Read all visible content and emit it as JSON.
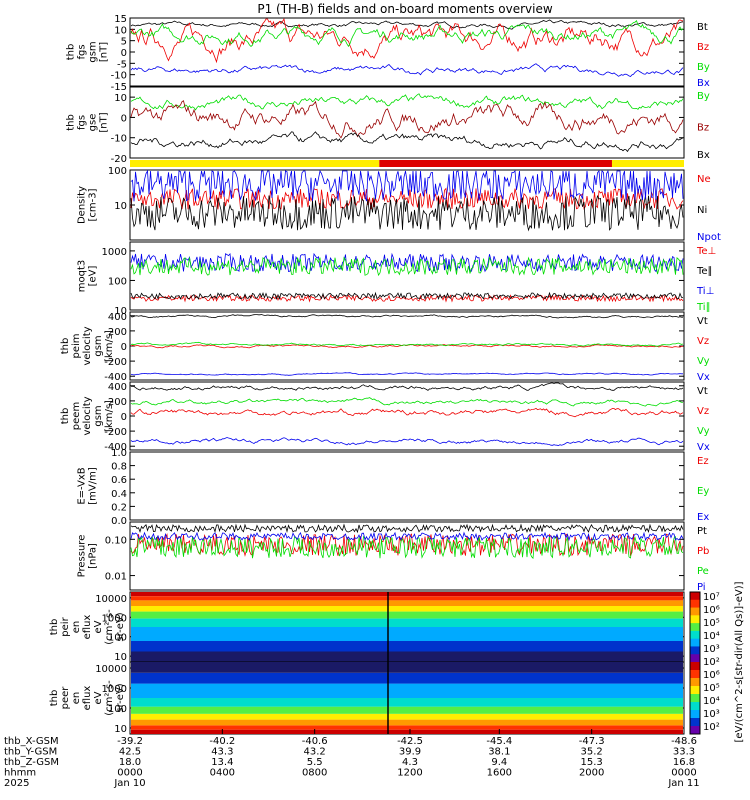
{
  "title": "P1 (TH-B) fields and on-board moments overview",
  "colors": {
    "black": "#000000",
    "red": "#ee0000",
    "green": "#00dd00",
    "blue": "#0000ee",
    "dark_red": "#990000",
    "yellow": "#ffee00",
    "bar_red": "#dd0000"
  },
  "chart_data": [
    {
      "type": "line",
      "ylabel": [
        "thb",
        "fgs",
        "gsm",
        "[nT]"
      ],
      "ylim": [
        -15,
        15
      ],
      "yticks": [
        "15",
        "10",
        "5",
        "0",
        "-5",
        "-10",
        "-15"
      ],
      "series": [
        {
          "name": "Bt",
          "color": "black",
          "level": 12,
          "spread": 2
        },
        {
          "name": "Bz",
          "color": "red",
          "level": 6,
          "spread": 10
        },
        {
          "name": "By",
          "color": "green",
          "level": 8,
          "spread": 6
        },
        {
          "name": "Bx",
          "color": "blue",
          "level": -8,
          "spread": 3
        }
      ]
    },
    {
      "type": "line",
      "ylabel": [
        "thb",
        "fgs",
        "gse",
        "[nT]"
      ],
      "ylim": [
        -20,
        15
      ],
      "yticks": [
        "10",
        "0",
        "-10",
        "-20"
      ],
      "series": [
        {
          "name": "By",
          "color": "green",
          "level": 7,
          "spread": 5
        },
        {
          "name": "Bz",
          "color": "dark_red",
          "level": 0,
          "spread": 10
        },
        {
          "name": "Bx",
          "color": "black",
          "level": -12,
          "spread": 5
        }
      ]
    },
    {
      "type": "bar",
      "name": "mode bar",
      "segments": [
        {
          "color": "yellow",
          "from": 0,
          "to": 0.45
        },
        {
          "color": "bar_red",
          "from": 0.45,
          "to": 0.87
        },
        {
          "color": "yellow",
          "from": 0.87,
          "to": 1
        }
      ]
    },
    {
      "type": "line",
      "scale": "log",
      "ylabel": [
        "Density",
        "[cm-3]"
      ],
      "ylim": [
        1,
        100
      ],
      "yticks": [
        "100",
        "10"
      ],
      "series": [
        {
          "name": "Ne",
          "color": "red",
          "level": 15,
          "spread": 0.3
        },
        {
          "name": "Ni",
          "color": "black",
          "level": 6,
          "spread": 0.5
        },
        {
          "name": "Npot",
          "color": "blue",
          "level": 40,
          "spread": 0.5
        }
      ]
    },
    {
      "type": "line",
      "scale": "log",
      "ylabel": [
        "moqt3",
        "[eV]"
      ],
      "ylim": [
        10,
        2000
      ],
      "yticks": [
        "1000",
        "100",
        "10"
      ],
      "series": [
        {
          "name": "Te⊥",
          "color": "red",
          "level": 25,
          "spread": 0.1
        },
        {
          "name": "Te∥",
          "color": "black",
          "level": 30,
          "spread": 0.1
        },
        {
          "name": "Ti⊥",
          "color": "blue",
          "level": 400,
          "spread": 0.3
        },
        {
          "name": "Ti∥",
          "color": "green",
          "level": 300,
          "spread": 0.3
        }
      ]
    },
    {
      "type": "line",
      "ylabel": [
        "thb",
        "peim",
        "velocity",
        "gsm",
        "[km/s]"
      ],
      "ylim": [
        -450,
        450
      ],
      "yticks": [
        "400",
        "200",
        "0",
        "-200",
        "-400"
      ],
      "series": [
        {
          "name": "Vt",
          "color": "black",
          "level": 390,
          "spread": 30
        },
        {
          "name": "Vz",
          "color": "red",
          "level": 0,
          "spread": 30
        },
        {
          "name": "Vy",
          "color": "green",
          "level": 20,
          "spread": 30
        },
        {
          "name": "Vx",
          "color": "blue",
          "level": -370,
          "spread": 20
        }
      ]
    },
    {
      "type": "line",
      "ylabel": [
        "thb",
        "peem",
        "velocity",
        "gsm",
        "[km/s]"
      ],
      "ylim": [
        -450,
        450
      ],
      "yticks": [
        "400",
        "200",
        "0",
        "-200",
        "-400"
      ],
      "series": [
        {
          "name": "Vt",
          "color": "black",
          "level": 380,
          "spread": 60
        },
        {
          "name": "Vz",
          "color": "red",
          "level": 50,
          "spread": 80
        },
        {
          "name": "Vy",
          "color": "green",
          "level": 180,
          "spread": 60
        },
        {
          "name": "Vx",
          "color": "blue",
          "level": -330,
          "spread": 60
        }
      ]
    },
    {
      "type": "line",
      "ylabel": [
        "E=-VxB",
        "[mV/m]"
      ],
      "ylim": [
        0,
        1
      ],
      "yticks": [
        "1.0",
        "0.8",
        "0.6",
        "0.4",
        "0.2",
        "0.0"
      ],
      "series": [
        {
          "name": "Ez",
          "color": "red"
        },
        {
          "name": "Ey",
          "color": "green"
        },
        {
          "name": "Ex",
          "color": "blue"
        }
      ]
    },
    {
      "type": "line",
      "scale": "log",
      "ylabel": [
        "Pressure",
        "[nPa]"
      ],
      "ylim": [
        0.004,
        0.3
      ],
      "yticks": [
        "0.10",
        "0.01"
      ],
      "series": [
        {
          "name": "Pt",
          "color": "black",
          "level": 0.2,
          "spread": 0.1
        },
        {
          "name": "Pb",
          "color": "red",
          "level": 0.07,
          "spread": 0.3
        },
        {
          "name": "Pe",
          "color": "green",
          "level": 0.06,
          "spread": 0.3
        },
        {
          "name": "Pi",
          "color": "blue",
          "level": 0.12,
          "spread": 0.1
        }
      ]
    },
    {
      "type": "heatmap",
      "scale": "log",
      "ylabel": [
        "thb",
        "peir",
        "en",
        "eflux",
        "eV",
        "(cm²-s-",
        "sr-eV)"
      ],
      "ylim": [
        5,
        20000
      ],
      "yticks": [
        "10000",
        "1000",
        "100",
        "10"
      ]
    },
    {
      "type": "heatmap",
      "scale": "log",
      "ylabel": [
        "thb",
        "peer",
        "en",
        "eflux",
        "eV",
        "(cm²-s-",
        "sr-eV)"
      ],
      "ylim": [
        5,
        20000
      ],
      "yticks": [
        "10000",
        "1000",
        "100",
        "10"
      ]
    }
  ],
  "colorbar": {
    "label": "[eV/(cm^2-s[str-dir(All Qs)]-eV)]",
    "ticks": [
      "10⁷",
      "10⁶",
      "10⁵",
      "10⁴",
      "10³",
      "10²",
      "10⁶",
      "10⁵",
      "10⁴",
      "10³",
      "10²"
    ]
  },
  "xaxis": {
    "rows": [
      {
        "name": "thb_X-GSM",
        "values": [
          "-39.2",
          "-40.2",
          "-40.6",
          "-42.5",
          "-45.4",
          "-47.3",
          "-48.6"
        ]
      },
      {
        "name": "thb_Y-GSM",
        "values": [
          "42.5",
          "43.3",
          "43.2",
          "39.9",
          "38.1",
          "35.2",
          "33.3"
        ]
      },
      {
        "name": "thb_Z-GSM",
        "values": [
          "18.0",
          "13.4",
          "5.5",
          "4.3",
          "9.4",
          "15.3",
          "16.8"
        ]
      },
      {
        "name": "hhmm",
        "values": [
          "0000",
          "0400",
          "0800",
          "1200",
          "1600",
          "2000",
          "0000"
        ]
      },
      {
        "name": "2025",
        "values": [
          "Jan 10",
          "",
          "",
          "",
          "",
          "",
          "Jan 11"
        ]
      }
    ]
  }
}
